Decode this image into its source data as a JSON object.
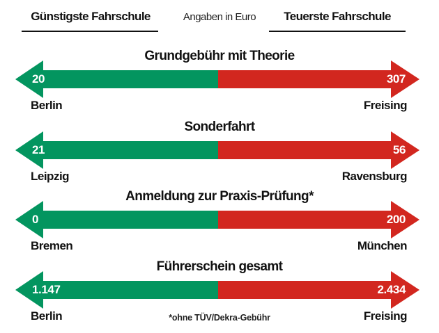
{
  "header": {
    "cheapest_label": "Günstigste Fahrschule",
    "unit_label": "Angaben in Euro",
    "most_expensive_label": "Teuerste Fahrschule"
  },
  "colors": {
    "cheapest": "#03955f",
    "most_expensive": "#d2271f"
  },
  "footnote": "*ohne TÜV/Dekra-Gebühr",
  "chart_data": {
    "type": "table",
    "columns": [
      "Günstigste Fahrschule",
      "Teuerste Fahrschule"
    ],
    "unit": "Angaben in Euro",
    "rows": [
      {
        "title": "Grundgebühr mit Theorie",
        "min_value": "20",
        "min_city": "Berlin",
        "max_value": "307",
        "max_city": "Freising"
      },
      {
        "title": "Sonderfahrt",
        "min_value": "21",
        "min_city": "Leipzig",
        "max_value": "56",
        "max_city": "Ravensburg"
      },
      {
        "title": "Anmeldung zur Praxis-Prüfung*",
        "min_value": "0",
        "min_city": "Bremen",
        "max_value": "200",
        "max_city": "München"
      },
      {
        "title": "Führerschein gesamt",
        "min_value": "1.147",
        "min_city": "Berlin",
        "max_value": "2.434",
        "max_city": "Freising"
      }
    ]
  }
}
